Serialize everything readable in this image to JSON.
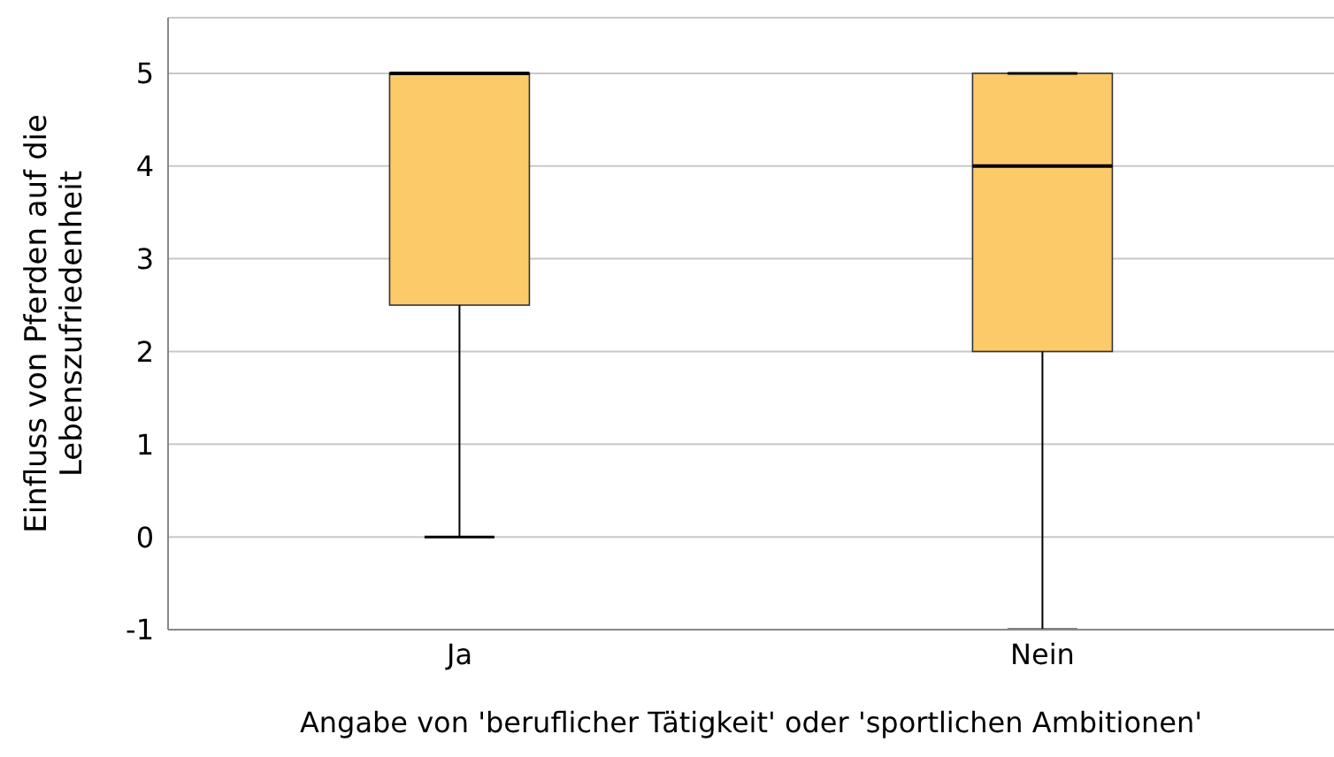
{
  "chart_data": {
    "type": "box",
    "xlabel": "Angabe von 'beruflicher Tätigkeit' oder 'sportlichen Ambitionen'",
    "ylabel": "Einfluss von Pferden auf die Lebenszufriedenheit",
    "categories": [
      "Ja",
      "Nein"
    ],
    "boxes": [
      {
        "low": 0,
        "q1": 2.5,
        "median": 5,
        "q3": 5,
        "high": 5
      },
      {
        "low": -1,
        "q1": 2,
        "median": 4,
        "q3": 5,
        "high": 5
      }
    ],
    "color": "#fdca6a",
    "ylim": [
      -1,
      5.6
    ],
    "yticks": [
      -1,
      0,
      1,
      2,
      3,
      4,
      5
    ],
    "grid": "y"
  }
}
